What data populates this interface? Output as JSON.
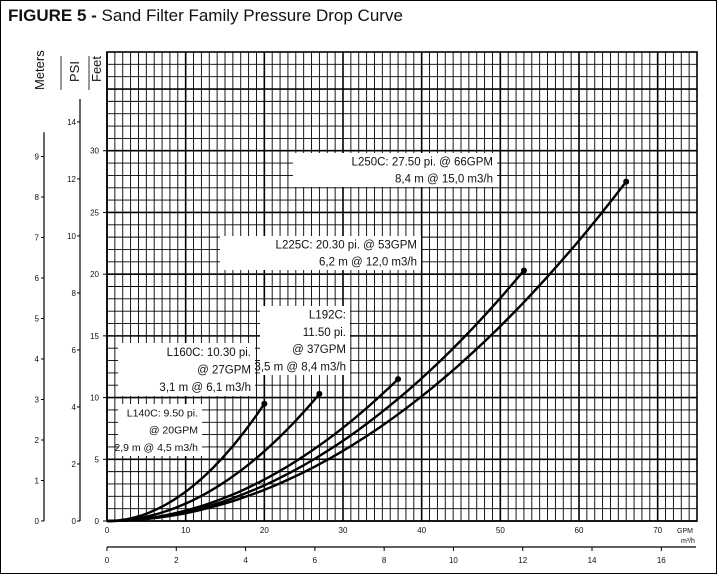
{
  "figure": {
    "label": "FIGURE 5 -",
    "title": "Sand Filter Family Pressure Drop Curve"
  },
  "chart_data": {
    "type": "line",
    "axis_labels": {
      "meters": "Meters",
      "psi": "PSI",
      "feet": "Feet",
      "gpm": "GPM",
      "m3h": "m³/h"
    },
    "x_gpm": {
      "range": [
        0,
        75
      ],
      "ticks": [
        0,
        10,
        20,
        30,
        40,
        50,
        60,
        70
      ]
    },
    "x_m3h": {
      "range": [
        0,
        17.03
      ],
      "ticks": [
        0,
        2,
        4,
        6,
        8,
        10,
        12,
        14,
        16
      ]
    },
    "y_feet": {
      "range": [
        0,
        38
      ],
      "ticks": [
        0,
        5,
        10,
        15,
        20,
        25,
        30
      ]
    },
    "y_psi": {
      "range": [
        0,
        16.45
      ],
      "ticks": [
        0,
        2,
        4,
        6,
        8,
        10,
        12,
        14
      ]
    },
    "y_meters": {
      "range": [
        0,
        11.58
      ],
      "ticks": [
        0,
        1,
        2,
        3,
        4,
        5,
        6,
        7,
        8,
        9
      ]
    },
    "grid": true,
    "series": [
      {
        "name": "L140C",
        "end_gpm": 20,
        "end_feet": 9.5,
        "label_lines": [
          "L140C: 9.50 pi.",
          "@ 20GPM",
          "2,9 m @ 4,5 m3/h"
        ]
      },
      {
        "name": "L160C",
        "end_gpm": 27,
        "end_feet": 10.3,
        "label_lines": [
          "L160C: 10.30 pi.",
          "@ 27GPM",
          "3,1 m @ 6,1 m3/h"
        ]
      },
      {
        "name": "L192C",
        "end_gpm": 37,
        "end_feet": 11.5,
        "label_lines": [
          "L192C:",
          "11.50 pi.",
          "@ 37GPM",
          "3,5 m @ 8,4 m3/h"
        ]
      },
      {
        "name": "L225C",
        "end_gpm": 53,
        "end_feet": 20.3,
        "label_lines": [
          "L225C: 20.30 pi. @ 53GPM",
          "6,2 m @ 12,0 m3/h"
        ]
      },
      {
        "name": "L250C",
        "end_gpm": 66,
        "end_feet": 27.5,
        "label_lines": [
          "L250C: 27.50 pi. @ 66GPM",
          "8,4 m @ 15,0 m3/h"
        ]
      }
    ]
  }
}
